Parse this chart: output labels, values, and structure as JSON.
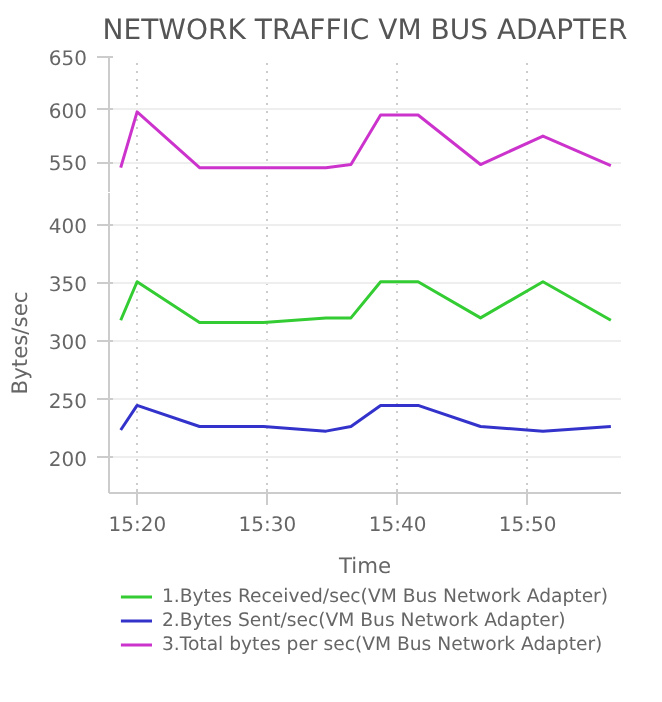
{
  "chart_data": [
    {
      "type": "line",
      "title": "NETWORK TRAFFIC VM BUS ADAPTER",
      "x": [
        15.312,
        15.333,
        15.413,
        15.495,
        15.575,
        15.607,
        15.645,
        15.693,
        15.773,
        15.853,
        15.94
      ],
      "series": [
        {
          "name": "3.Total bytes per sec(VM Bus Network Adapter)",
          "color": "#cc33cc",
          "values": [
            545,
            598,
            545,
            545,
            545,
            548,
            595,
            595,
            548,
            575,
            547
          ]
        }
      ],
      "xlim": [
        15.297,
        15.953
      ],
      "ylim": [
        521,
        650
      ],
      "yticks": [
        550,
        600,
        650
      ],
      "tick_labels": "y",
      "grid": true,
      "legend": "bottom",
      "line_style": "solid"
    },
    {
      "type": "line",
      "xlabel": "Time",
      "ylabel": "Bytes/sec",
      "x": [
        15.312,
        15.333,
        15.413,
        15.495,
        15.575,
        15.607,
        15.645,
        15.693,
        15.773,
        15.853,
        15.94
      ],
      "series": [
        {
          "name": "1.Bytes Received/sec(VM Bus Network Adapter)",
          "color": "#33cc33",
          "values": [
            318,
            351,
            316,
            316,
            320,
            320,
            351,
            351,
            320,
            351,
            318
          ]
        },
        {
          "name": "2.Bytes Sent/sec(VM Bus Network Adapter)",
          "color": "#3333cc",
          "values": [
            224,
            245,
            227,
            227,
            223,
            227,
            245,
            245,
            227,
            223,
            227
          ]
        }
      ],
      "xlim": [
        15.297,
        15.953
      ],
      "xticks": [
        {
          "value": 15.3333,
          "label": "15:20"
        },
        {
          "value": 15.5,
          "label": "15:30"
        },
        {
          "value": 15.6667,
          "label": "15:40"
        },
        {
          "value": 15.8333,
          "label": "15:50"
        }
      ],
      "ylim": [
        170,
        427
      ],
      "yticks": [
        200,
        250,
        300,
        350,
        400
      ],
      "grid": true,
      "legend": "bottom",
      "line_style": "solid"
    }
  ]
}
